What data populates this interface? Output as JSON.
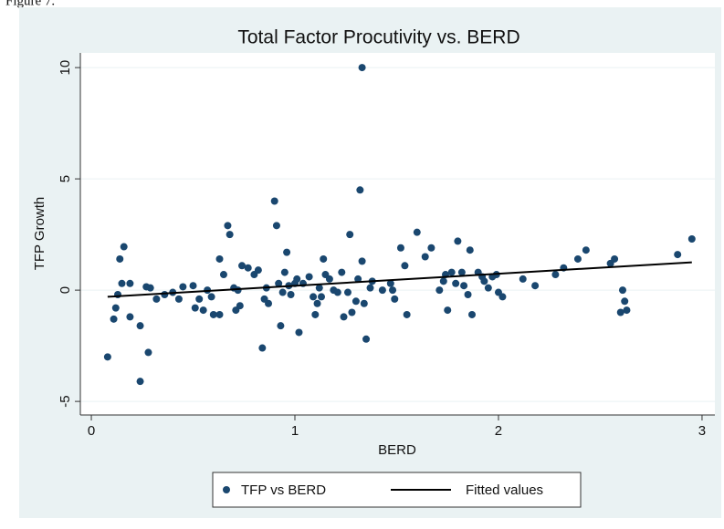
{
  "figure_label": "Figure 7.",
  "chart_data": {
    "type": "scatter",
    "title": "Total Factor Procutivity vs. BERD",
    "x_label": "BERD",
    "y_label": "TFP Growth",
    "xlim": [
      -0.054,
      3.063
    ],
    "ylim": [
      -5.61,
      10.66
    ],
    "xticks": [
      0,
      1,
      2,
      3
    ],
    "yticks": [
      -5,
      0,
      5,
      10
    ],
    "grid": true,
    "legend": "bottom",
    "series": [
      {
        "name": "TFP vs BERD",
        "color": "#1a476f",
        "type": "scatter",
        "x": [
          0.08,
          0.11,
          0.12,
          0.13,
          0.14,
          0.15,
          0.16,
          0.19,
          0.19,
          0.24,
          0.24,
          0.27,
          0.28,
          0.29,
          0.32,
          0.36,
          0.4,
          0.43,
          0.45,
          0.5,
          0.51,
          0.53,
          0.55,
          0.57,
          0.59,
          0.6,
          0.63,
          0.63,
          0.65,
          0.67,
          0.68,
          0.7,
          0.71,
          0.72,
          0.73,
          0.74,
          0.77,
          0.8,
          0.82,
          0.84,
          0.85,
          0.86,
          0.87,
          0.9,
          0.91,
          0.92,
          0.93,
          0.94,
          0.95,
          0.96,
          0.97,
          0.98,
          1.0,
          1.01,
          1.02,
          1.04,
          1.07,
          1.09,
          1.1,
          1.11,
          1.12,
          1.13,
          1.14,
          1.15,
          1.17,
          1.19,
          1.21,
          1.23,
          1.24,
          1.26,
          1.27,
          1.28,
          1.3,
          1.31,
          1.32,
          1.33,
          1.33,
          1.34,
          1.35,
          1.37,
          1.38,
          1.43,
          1.47,
          1.48,
          1.49,
          1.52,
          1.54,
          1.55,
          1.6,
          1.64,
          1.67,
          1.71,
          1.73,
          1.74,
          1.75,
          1.77,
          1.79,
          1.8,
          1.82,
          1.83,
          1.85,
          1.86,
          1.87,
          1.9,
          1.92,
          1.93,
          1.95,
          1.97,
          1.99,
          2.0,
          2.02,
          2.12,
          2.18,
          2.28,
          2.32,
          2.39,
          2.43,
          2.55,
          2.57,
          2.6,
          2.61,
          2.62,
          2.63,
          2.88,
          2.95
        ],
        "values": [
          -3.0,
          -1.3,
          -0.8,
          -0.2,
          1.4,
          0.3,
          1.95,
          0.3,
          -1.2,
          -1.6,
          -4.1,
          0.15,
          -2.8,
          0.1,
          -0.4,
          -0.2,
          -0.1,
          -0.4,
          0.15,
          0.2,
          -0.8,
          -0.4,
          -0.9,
          0.0,
          -0.3,
          -1.1,
          -1.1,
          1.4,
          0.7,
          2.9,
          2.5,
          0.1,
          -0.9,
          0.0,
          -0.7,
          1.1,
          1.0,
          0.7,
          0.9,
          -2.6,
          -0.4,
          0.1,
          -0.6,
          4.0,
          2.9,
          0.3,
          -1.6,
          -0.1,
          0.8,
          1.7,
          0.2,
          -0.2,
          0.3,
          0.5,
          -1.9,
          0.3,
          0.6,
          -0.3,
          -1.1,
          -0.6,
          0.1,
          -0.3,
          1.4,
          0.7,
          0.5,
          0.0,
          -0.1,
          0.8,
          -1.2,
          -0.1,
          2.5,
          -1.0,
          -0.5,
          0.5,
          4.5,
          10.0,
          1.3,
          -0.6,
          -2.2,
          0.1,
          0.4,
          0.0,
          0.3,
          0.0,
          -0.4,
          1.9,
          1.1,
          -1.1,
          2.6,
          1.5,
          1.9,
          0.0,
          0.4,
          0.7,
          -0.9,
          0.8,
          0.3,
          2.2,
          0.8,
          0.2,
          -0.2,
          1.8,
          -1.1,
          0.8,
          0.6,
          0.4,
          0.1,
          0.6,
          0.7,
          -0.1,
          -0.3,
          0.5,
          0.2,
          0.7,
          1.0,
          1.4,
          1.8,
          1.2,
          1.4,
          -1.0,
          0.0,
          -0.5,
          -0.9,
          1.6,
          2.3
        ]
      },
      {
        "name": "Fitted values",
        "color": "#000000",
        "type": "line",
        "x": [
          0.08,
          2.95
        ],
        "values": [
          -0.3,
          1.25
        ]
      }
    ]
  }
}
